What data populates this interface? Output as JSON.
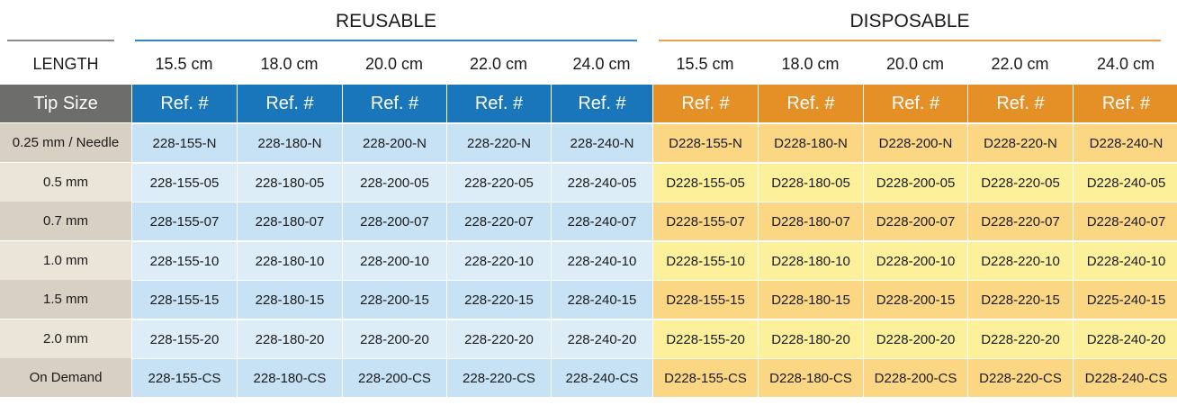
{
  "groups": {
    "reusable": "REUSABLE",
    "disposable": "DISPOSABLE"
  },
  "length_label": "LENGTH",
  "lengths": [
    "15.5 cm",
    "18.0 cm",
    "20.0 cm",
    "22.0 cm",
    "24.0 cm"
  ],
  "tip_size_label": "Tip Size",
  "ref_label": "Ref. #",
  "colors": {
    "reusable_header": "#1a76bb",
    "reusable_rule": "#2e86c7",
    "disposable_header": "#e59027",
    "disposable_rule": "#e9a14b",
    "tip_header": "#6d6d6b",
    "tip_dark": "#d9d0c4",
    "tip_light": "#ebe4d8",
    "reusable_dark": "#c7e2f4",
    "reusable_light": "#dcedf8",
    "disposable_dark": "#fbd784",
    "disposable_light": "#fdf09a"
  },
  "rows": [
    {
      "tip": "0.25 mm / Needle",
      "reusable": [
        "228-155-N",
        "228-180-N",
        "228-200-N",
        "228-220-N",
        "228-240-N"
      ],
      "disposable": [
        "D228-155-N",
        "D228-180-N",
        "D228-200-N",
        "D228-220-N",
        "D228-240-N"
      ]
    },
    {
      "tip": "0.5 mm",
      "reusable": [
        "228-155-05",
        "228-180-05",
        "228-200-05",
        "228-220-05",
        "228-240-05"
      ],
      "disposable": [
        "D228-155-05",
        "D228-180-05",
        "D228-200-05",
        "D228-220-05",
        "D228-240-05"
      ]
    },
    {
      "tip": "0.7 mm",
      "reusable": [
        "228-155-07",
        "228-180-07",
        "228-200-07",
        "228-220-07",
        "228-240-07"
      ],
      "disposable": [
        "D228-155-07",
        "D228-180-07",
        "D228-200-07",
        "D228-220-07",
        "D228-240-07"
      ]
    },
    {
      "tip": "1.0 mm",
      "reusable": [
        "228-155-10",
        "228-180-10",
        "228-200-10",
        "228-220-10",
        "228-240-10"
      ],
      "disposable": [
        "D228-155-10",
        "D228-180-10",
        "D228-200-10",
        "D228-220-10",
        "D228-240-10"
      ]
    },
    {
      "tip": "1.5 mm",
      "reusable": [
        "228-155-15",
        "228-180-15",
        "228-200-15",
        "228-220-15",
        "228-240-15"
      ],
      "disposable": [
        "D228-155-15",
        "D228-180-15",
        "D228-200-15",
        "D228-220-15",
        "D225-240-15"
      ]
    },
    {
      "tip": "2.0 mm",
      "reusable": [
        "228-155-20",
        "228-180-20",
        "228-200-20",
        "228-220-20",
        "228-240-20"
      ],
      "disposable": [
        "D228-155-20",
        "D228-180-20",
        "D228-200-20",
        "D228-220-20",
        "D228-240-20"
      ]
    },
    {
      "tip": "On Demand",
      "reusable": [
        "228-155-CS",
        "228-180-CS",
        "228-200-CS",
        "228-220-CS",
        "228-240-CS"
      ],
      "disposable": [
        "D228-155-CS",
        "D228-180-CS",
        "D228-200-CS",
        "D228-220-CS",
        "D228-240-CS"
      ]
    }
  ]
}
